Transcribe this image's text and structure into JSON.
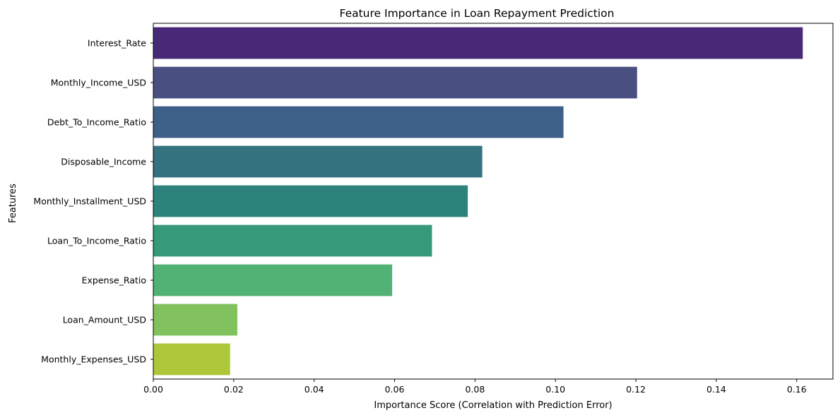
{
  "chart_data": {
    "type": "bar",
    "orientation": "horizontal",
    "title": "Feature Importance in Loan Repayment Prediction",
    "xlabel": "Importance Score (Correlation with Prediction Error)",
    "ylabel": "Features",
    "xlim": [
      0,
      0.169
    ],
    "xticks": [
      "0.00",
      "0.02",
      "0.04",
      "0.06",
      "0.08",
      "0.10",
      "0.12",
      "0.14",
      "0.16"
    ],
    "categories": [
      "Interest_Rate",
      "Monthly_Income_USD",
      "Debt_To_Income_Ratio",
      "Disposable_Income",
      "Monthly_Installment_USD",
      "Loan_To_Income_Ratio",
      "Expense_Ratio",
      "Loan_Amount_USD",
      "Monthly_Expenses_USD"
    ],
    "values": [
      0.1615,
      0.1203,
      0.102,
      0.0818,
      0.0782,
      0.0693,
      0.0594,
      0.0209,
      0.0191
    ],
    "colors": [
      "#482878",
      "#4a4f82",
      "#3e5f88",
      "#35727f",
      "#2d827c",
      "#35997a",
      "#52b174",
      "#82c25e",
      "#adc73b"
    ],
    "grid": false,
    "legend": "none"
  }
}
